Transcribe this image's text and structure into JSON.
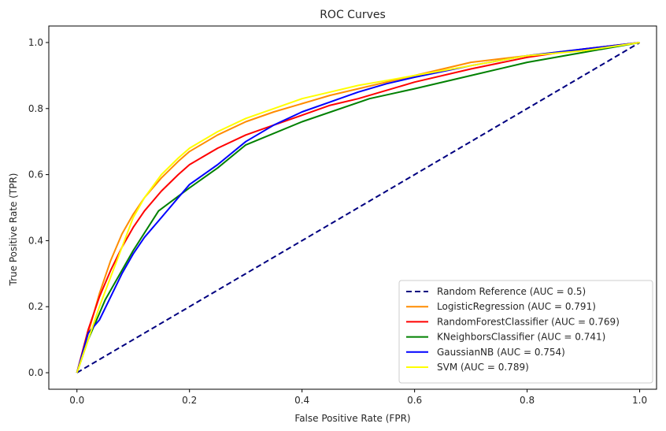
{
  "chart_data": {
    "type": "line",
    "title": "ROC Curves",
    "xlabel": "False Positive Rate (FPR)",
    "ylabel": "True Positive Rate (TPR)",
    "xlim": [
      -0.05,
      1.03
    ],
    "ylim": [
      -0.05,
      1.05
    ],
    "xticks": [
      0.0,
      0.2,
      0.4,
      0.6,
      0.8,
      1.0
    ],
    "xtick_labels": [
      "0.0",
      "0.2",
      "0.4",
      "0.6",
      "0.8",
      "1.0"
    ],
    "yticks": [
      0.0,
      0.2,
      0.4,
      0.6,
      0.8,
      1.0
    ],
    "ytick_labels": [
      "0.0",
      "0.2",
      "0.4",
      "0.6",
      "0.8",
      "1.0"
    ],
    "grid": false,
    "legend_position": "lower-right",
    "series": [
      {
        "name": "Random Reference (AUC = 0.5)",
        "color": "#000080",
        "dashed": true,
        "x": [
          0.0,
          1.0
        ],
        "y": [
          0.0,
          1.0
        ]
      },
      {
        "name": "LogisticRegression (AUC = 0.791)",
        "color": "#ff8c00",
        "dashed": false,
        "x": [
          0.0,
          0.02,
          0.04,
          0.06,
          0.08,
          0.1,
          0.12,
          0.15,
          0.18,
          0.2,
          0.25,
          0.3,
          0.35,
          0.4,
          0.45,
          0.5,
          0.55,
          0.6,
          0.65,
          0.7,
          0.8,
          0.9,
          1.0
        ],
        "y": [
          0.0,
          0.12,
          0.24,
          0.34,
          0.42,
          0.48,
          0.53,
          0.59,
          0.64,
          0.67,
          0.72,
          0.76,
          0.79,
          0.815,
          0.84,
          0.86,
          0.88,
          0.9,
          0.92,
          0.94,
          0.96,
          0.98,
          1.0
        ]
      },
      {
        "name": "RandomForestClassifier (AUC = 0.769)",
        "color": "#ff0000",
        "dashed": false,
        "x": [
          0.0,
          0.02,
          0.04,
          0.06,
          0.08,
          0.1,
          0.12,
          0.15,
          0.18,
          0.2,
          0.25,
          0.3,
          0.35,
          0.4,
          0.45,
          0.5,
          0.55,
          0.6,
          0.7,
          0.8,
          0.9,
          1.0
        ],
        "y": [
          0.0,
          0.13,
          0.23,
          0.31,
          0.38,
          0.44,
          0.49,
          0.55,
          0.6,
          0.63,
          0.68,
          0.72,
          0.75,
          0.78,
          0.81,
          0.83,
          0.855,
          0.88,
          0.92,
          0.955,
          0.98,
          1.0
        ]
      },
      {
        "name": "KNeighborsClassifier (AUC = 0.741)",
        "color": "#008000",
        "dashed": false,
        "x": [
          0.0,
          0.02,
          0.05,
          0.1,
          0.145,
          0.2,
          0.25,
          0.3,
          0.4,
          0.52,
          0.6,
          0.7,
          0.8,
          0.9,
          1.0
        ],
        "y": [
          0.0,
          0.1,
          0.22,
          0.37,
          0.49,
          0.56,
          0.62,
          0.69,
          0.76,
          0.83,
          0.86,
          0.9,
          0.94,
          0.97,
          1.0
        ]
      },
      {
        "name": "GaussianNB (AUC = 0.754)",
        "color": "#0000ff",
        "dashed": false,
        "x": [
          0.0,
          0.02,
          0.04,
          0.06,
          0.08,
          0.1,
          0.12,
          0.15,
          0.18,
          0.2,
          0.25,
          0.3,
          0.35,
          0.4,
          0.45,
          0.5,
          0.55,
          0.6,
          0.7,
          0.8,
          0.9,
          1.0
        ],
        "y": [
          0.0,
          0.12,
          0.16,
          0.23,
          0.3,
          0.36,
          0.41,
          0.47,
          0.53,
          0.57,
          0.63,
          0.7,
          0.75,
          0.79,
          0.82,
          0.85,
          0.875,
          0.895,
          0.93,
          0.96,
          0.98,
          1.0
        ]
      },
      {
        "name": "SVM (AUC = 0.789)",
        "color": "#ffff00",
        "dashed": false,
        "x": [
          0.0,
          0.02,
          0.04,
          0.06,
          0.08,
          0.1,
          0.12,
          0.15,
          0.18,
          0.2,
          0.25,
          0.3,
          0.35,
          0.4,
          0.45,
          0.5,
          0.55,
          0.6,
          0.7,
          0.8,
          0.9,
          1.0
        ],
        "y": [
          0.0,
          0.1,
          0.2,
          0.29,
          0.38,
          0.47,
          0.53,
          0.6,
          0.65,
          0.68,
          0.73,
          0.77,
          0.8,
          0.83,
          0.85,
          0.87,
          0.885,
          0.9,
          0.93,
          0.96,
          0.975,
          1.0
        ]
      }
    ]
  }
}
